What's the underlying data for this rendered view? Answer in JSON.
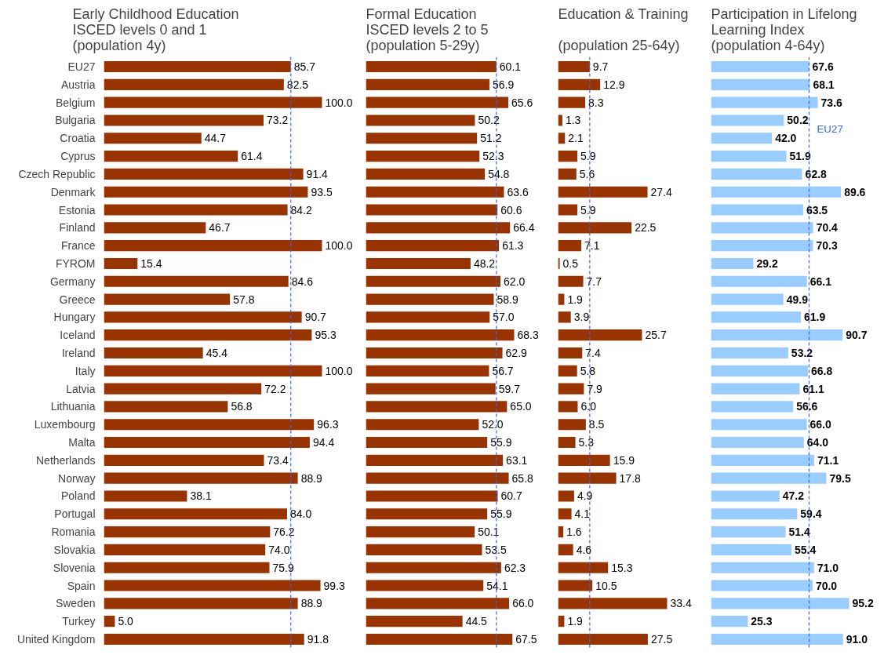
{
  "chart_data": [
    {
      "type": "bar",
      "orientation": "horizontal",
      "title": "Early Childhood Education\nISCED levels 0 and 1\n(population 4y)",
      "categories": [
        "EU27",
        "Austria",
        "Belgium",
        "Bulgaria",
        "Croatia",
        "Cyprus",
        "Czech Republic",
        "Denmark",
        "Estonia",
        "Finland",
        "France",
        "FYROM",
        "Germany",
        "Greece",
        "Hungary",
        "Iceland",
        "Ireland",
        "Italy",
        "Latvia",
        "Lithuania",
        "Luxembourg",
        "Malta",
        "Netherlands",
        "Norway",
        "Poland",
        "Portugal",
        "Romania",
        "Slovakia",
        "Slovenia",
        "Spain",
        "Sweden",
        "Turkey",
        "United Kingdom"
      ],
      "values": [
        85.7,
        82.5,
        100.0,
        73.2,
        44.7,
        61.4,
        91.4,
        93.5,
        84.2,
        46.7,
        100.0,
        15.4,
        84.6,
        57.8,
        90.7,
        95.3,
        45.4,
        100.0,
        72.2,
        56.8,
        96.3,
        94.4,
        73.4,
        88.9,
        38.1,
        84.0,
        76.2,
        74.0,
        75.9,
        99.3,
        88.9,
        5.0,
        91.8
      ],
      "value_labels": [
        "85.7",
        "82.5",
        "100.0",
        "73.2",
        "44.7",
        "61.4",
        "91.4",
        "93.5",
        "84.2",
        "46.7",
        "100.0",
        "15.4",
        "84.6",
        "57.8",
        "90.7",
        "95.3",
        "45.4",
        "100.0",
        "72.2",
        "56.8",
        "96.3",
        "94.4",
        "73.4",
        "88.9",
        "38.1",
        "84.0",
        "76.2",
        "74.0",
        "75.9",
        "99.3",
        "88.9",
        "5.0",
        "91.8"
      ],
      "color": "#993300",
      "tick_labels": "y",
      "ref_lines": [
        {
          "axis": "x",
          "value": 85.7,
          "color": "#3366ff",
          "line_style": "dashed"
        }
      ]
    },
    {
      "type": "bar",
      "orientation": "horizontal",
      "title": "Formal Education\nISCED levels 2 to 5\n(population 5-29y)",
      "categories": [
        null,
        null,
        null,
        null,
        null,
        null,
        null,
        null,
        null,
        null,
        null,
        null,
        null,
        null,
        null,
        null,
        null,
        null,
        null,
        null,
        null,
        null,
        null,
        null,
        null,
        null,
        null,
        null,
        null,
        null,
        null,
        null,
        null
      ],
      "values": [
        60.1,
        56.9,
        65.6,
        50.2,
        51.2,
        52.3,
        54.8,
        63.6,
        60.6,
        66.4,
        61.3,
        48.2,
        62.0,
        58.9,
        57.0,
        68.3,
        62.9,
        56.7,
        59.7,
        65.0,
        52.0,
        55.9,
        63.1,
        65.8,
        60.7,
        55.9,
        50.1,
        53.5,
        62.3,
        54.1,
        66.0,
        44.5,
        67.5
      ],
      "value_labels": [
        "60.1",
        "56.9",
        "65.6",
        "50.2",
        "51.2",
        "52.3",
        "54.8",
        "63.6",
        "60.6",
        "66.4",
        "61.3",
        "48.2",
        "62.0",
        "58.9",
        "57.0",
        "68.3",
        "62.9",
        "56.7",
        "59.7",
        "65.0",
        "52.0",
        "55.9",
        "63.1",
        "65.8",
        "60.7",
        "55.9",
        "50.1",
        "53.5",
        "62.3",
        "54.1",
        "66.0",
        "44.5",
        "67.5"
      ],
      "color": "#993300",
      "tick_labels": false,
      "ref_lines": [
        {
          "axis": "x",
          "value": 60.1,
          "color": "#3366ff",
          "line_style": "dashed"
        }
      ]
    },
    {
      "type": "bar",
      "orientation": "horizontal",
      "title": "Education & Training\n\n(population 25-64y)",
      "categories": [
        null,
        null,
        null,
        null,
        null,
        null,
        null,
        null,
        null,
        null,
        null,
        null,
        null,
        null,
        null,
        null,
        null,
        null,
        null,
        null,
        null,
        null,
        null,
        null,
        null,
        null,
        null,
        null,
        null,
        null,
        null,
        null,
        null
      ],
      "values": [
        9.7,
        12.9,
        8.3,
        1.3,
        2.1,
        5.9,
        5.6,
        27.4,
        5.9,
        22.5,
        7.1,
        0.5,
        7.7,
        1.9,
        3.9,
        25.7,
        7.4,
        5.8,
        7.9,
        6.0,
        8.5,
        5.3,
        15.9,
        17.8,
        4.9,
        4.1,
        1.6,
        4.6,
        15.3,
        10.5,
        33.4,
        1.9,
        27.5
      ],
      "value_labels": [
        "9.7",
        "12.9",
        "8.3",
        "1.3",
        "2.1",
        "5.9",
        "5.6",
        "27.4",
        "5.9",
        "22.5",
        "7.1",
        "0.5",
        "7.7",
        "1.9",
        "3.9",
        "25.7",
        "7.4",
        "5.8",
        "7.9",
        "6.0",
        "8.5",
        "5.3",
        "15.9",
        "17.8",
        "4.9",
        "4.1",
        "1.6",
        "4.6",
        "15.3",
        "10.5",
        "33.4",
        "1.9",
        "27.5"
      ],
      "color": "#993300",
      "tick_labels": false,
      "ref_lines": [
        {
          "axis": "x",
          "value": 9.7,
          "color": "#3366ff",
          "line_style": "dashed"
        }
      ]
    },
    {
      "type": "bar",
      "orientation": "horizontal",
      "title": "Participation in Lifelong\nLearning Index\n(population 4-64y)",
      "categories": [
        null,
        null,
        null,
        null,
        null,
        null,
        null,
        null,
        null,
        null,
        null,
        null,
        null,
        null,
        null,
        null,
        null,
        null,
        null,
        null,
        null,
        null,
        null,
        null,
        null,
        null,
        null,
        null,
        null,
        null,
        null,
        null,
        null
      ],
      "values": [
        67.6,
        68.1,
        73.6,
        50.2,
        42.0,
        51.9,
        62.8,
        89.6,
        63.5,
        70.4,
        70.3,
        29.2,
        66.1,
        49.9,
        61.9,
        90.7,
        53.2,
        66.8,
        61.1,
        56.6,
        66.0,
        64.0,
        71.1,
        79.5,
        47.2,
        59.4,
        51.4,
        55.4,
        71.0,
        70.0,
        95.2,
        25.3,
        91.0
      ],
      "value_labels": [
        "67.6",
        "68.1",
        "73.6",
        "50.2",
        "42.0",
        "51.9",
        "62.8",
        "89.6",
        "63.5",
        "70.4",
        "70.3",
        "29.2",
        "66.1",
        "49.9",
        "61.9",
        "90.7",
        "53.2",
        "66.8",
        "61.1",
        "56.6",
        "66.0",
        "64.0",
        "71.1",
        "79.5",
        "47.2",
        "59.4",
        "51.4",
        "55.4",
        "71.0",
        "70.0",
        "95.2",
        "25.3",
        "91.0"
      ],
      "color": "#99ccff",
      "tick_labels": false,
      "ref_lines": [
        {
          "axis": "x",
          "value": 67.6,
          "label": "EU27",
          "color": "#3366ff",
          "line_style": "dashed"
        }
      ]
    }
  ]
}
